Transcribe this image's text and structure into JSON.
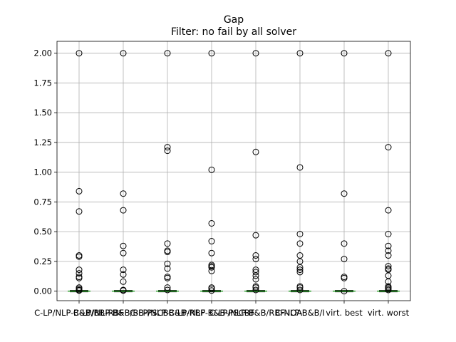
{
  "chart_data": {
    "type": "box",
    "title": "Gap",
    "subtitle": "Filter: no fail by all solver",
    "xlabel": "",
    "ylabel": "",
    "ylim": [
      -0.08,
      2.1
    ],
    "grid": true,
    "yticks": [
      "0.00",
      "0.25",
      "0.50",
      "0.75",
      "1.00",
      "1.25",
      "1.50",
      "1.75",
      "2.00"
    ],
    "categories": [
      "C-LP/NLP-B&B/BB-RBF",
      "C-LP/NLP-B&B/BB-PSCBF",
      "C-LP/NLP-B&B-RBF",
      "C-LP/NLP-B&B-PSCBF",
      "C-LP/NLP-B&B/RBF-IOA",
      "C-NLP-B&B/I",
      "virt. best",
      "virt. worst"
    ],
    "series": [
      {
        "median": 0,
        "q1": 0,
        "q3": 0,
        "fliers": [
          2.0,
          0.84,
          0.67,
          0.3,
          0.29,
          0.18,
          0.15,
          0.12,
          0.11,
          0.03,
          0.02,
          0.01,
          0.005
        ]
      },
      {
        "median": 0,
        "q1": 0,
        "q3": 0,
        "fliers": [
          2.0,
          0.82,
          0.68,
          0.38,
          0.32,
          0.18,
          0.14,
          0.08,
          0.01,
          0.005
        ]
      },
      {
        "median": 0,
        "q1": 0,
        "q3": 0,
        "fliers": [
          2.0,
          1.21,
          1.18,
          0.4,
          0.34,
          0.33,
          0.23,
          0.19,
          0.12,
          0.11,
          0.03,
          0.01
        ]
      },
      {
        "median": 0,
        "q1": 0,
        "q3": 0,
        "fliers": [
          2.0,
          1.02,
          0.57,
          0.42,
          0.32,
          0.22,
          0.21,
          0.2,
          0.17,
          0.03,
          0.02,
          0.005
        ]
      },
      {
        "median": 0,
        "q1": 0,
        "q3": 0,
        "fliers": [
          2.0,
          1.17,
          0.47,
          0.3,
          0.27,
          0.18,
          0.16,
          0.13,
          0.1,
          0.04,
          0.03,
          0.01
        ]
      },
      {
        "median": 0,
        "q1": 0,
        "q3": 0,
        "fliers": [
          2.0,
          1.04,
          0.48,
          0.4,
          0.3,
          0.25,
          0.2,
          0.18,
          0.16,
          0.04,
          0.03,
          0.01
        ]
      },
      {
        "median": 0,
        "q1": 0,
        "q3": 0,
        "fliers": [
          2.0,
          0.82,
          0.4,
          0.27,
          0.12,
          0.11,
          0.0
        ]
      },
      {
        "median": 0,
        "q1": 0,
        "q3": 0,
        "fliers": [
          2.0,
          1.21,
          0.68,
          0.48,
          0.38,
          0.34,
          0.3,
          0.21,
          0.19,
          0.18,
          0.13,
          0.08,
          0.04,
          0.03,
          0.02,
          0.01
        ]
      }
    ]
  }
}
